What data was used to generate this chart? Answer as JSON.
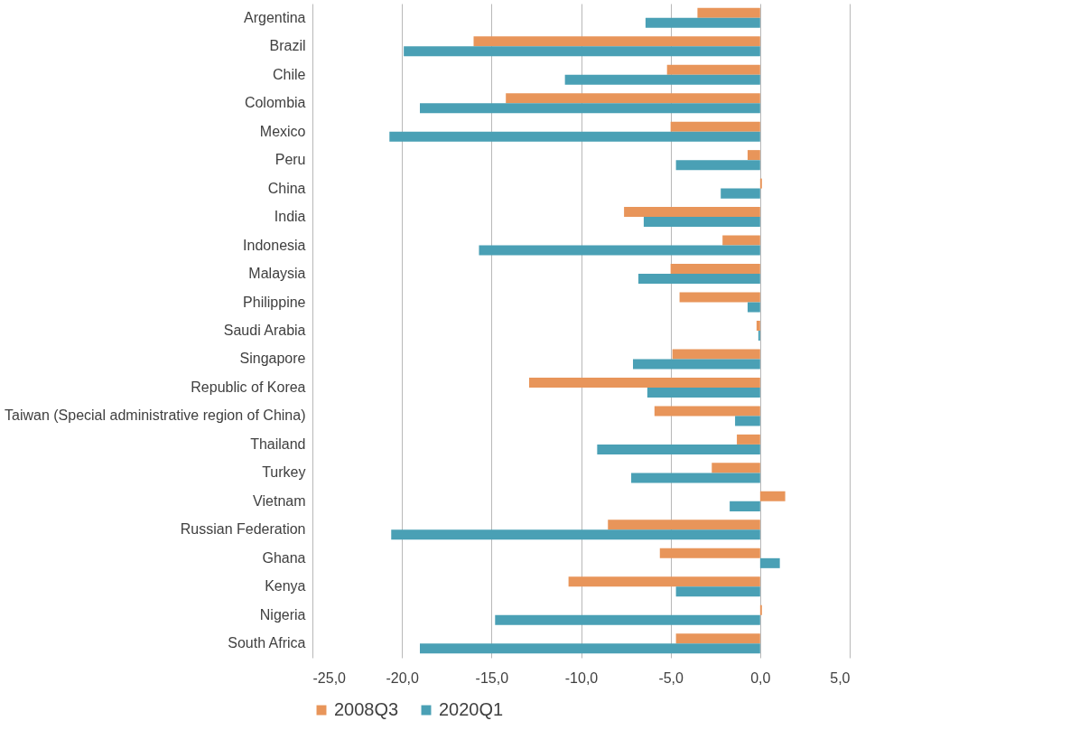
{
  "chart_data": {
    "type": "bar",
    "orientation": "horizontal",
    "categories": [
      "Argentina",
      "Brazil",
      "Chile",
      "Colombia",
      "Mexico",
      "Peru",
      "China",
      "India",
      "Indonesia",
      "Malaysia",
      "Philippine",
      "Saudi Arabia",
      "Singapore",
      "Republic of Korea",
      "Taiwan (Special administrative region of China)",
      "Thailand",
      "Turkey",
      "Vietnam",
      "Russian Federation",
      "Ghana",
      "Kenya",
      "Nigeria",
      "South Africa"
    ],
    "series": [
      {
        "name": "2008Q3",
        "color": "#e8955a",
        "values": [
          -3.5,
          -16.0,
          -5.2,
          -14.2,
          -5.0,
          -0.7,
          0.1,
          -7.6,
          -2.1,
          -5.0,
          -4.5,
          -0.2,
          -4.9,
          -12.9,
          -5.9,
          -1.3,
          -2.7,
          1.4,
          -8.5,
          -5.6,
          -10.7,
          0.1,
          -4.7
        ]
      },
      {
        "name": "2020Q1",
        "color": "#4aa0b5",
        "values": [
          -6.4,
          -19.9,
          -10.9,
          -19.0,
          -20.7,
          -4.7,
          -2.2,
          -6.5,
          -15.7,
          -6.8,
          -0.7,
          -0.1,
          -7.1,
          -6.3,
          -1.4,
          -9.1,
          -7.2,
          -1.7,
          -20.6,
          1.1,
          -4.7,
          -14.8,
          -19.0
        ]
      }
    ],
    "xlim": [
      -25,
      5
    ],
    "xticks": [
      {
        "value": -25,
        "label": "-25,0"
      },
      {
        "value": -20,
        "label": "-20,0"
      },
      {
        "value": -15,
        "label": "-15,0"
      },
      {
        "value": -10,
        "label": "-10,0"
      },
      {
        "value": -5,
        "label": "-5,0"
      },
      {
        "value": 0,
        "label": "0,0"
      },
      {
        "value": 5,
        "label": "5,0"
      }
    ],
    "grid": "x",
    "legend": "bottom"
  }
}
